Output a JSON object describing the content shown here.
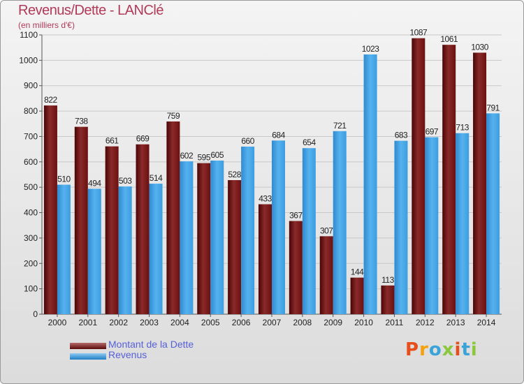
{
  "header": {
    "title": "Revenus/Dette - LANClé",
    "subtitle": "(en milliers d'€)"
  },
  "logo": {
    "text": "Proxiti",
    "colors": [
      "#e84e1b",
      "#f4a20b",
      "#3aa3d8",
      "#8cc63e",
      "#e84e1b",
      "#3aa3d8",
      "#8cc63e"
    ]
  },
  "chart_data": {
    "type": "bar",
    "categories": [
      "2000",
      "2001",
      "2002",
      "2003",
      "2004",
      "2005",
      "2006",
      "2007",
      "2008",
      "2009",
      "2010",
      "2011",
      "2012",
      "2013",
      "2014"
    ],
    "series": [
      {
        "name": "Montant de la Dette",
        "color": "#7a1a1a",
        "values": [
          822,
          738,
          661,
          669,
          759,
          595,
          528,
          433,
          367,
          307,
          144,
          113,
          1087,
          1061,
          1030
        ]
      },
      {
        "name": "Revenus",
        "color": "#3b9de0",
        "values": [
          510,
          494,
          503,
          514,
          602,
          605,
          660,
          684,
          654,
          721,
          1023,
          683,
          697,
          713,
          791
        ]
      }
    ],
    "yticks": [
      0,
      100,
      200,
      300,
      400,
      500,
      600,
      700,
      800,
      900,
      1000,
      1100
    ],
    "ylim": [
      0,
      1100
    ],
    "grid": true,
    "legend": "bottom-left"
  }
}
